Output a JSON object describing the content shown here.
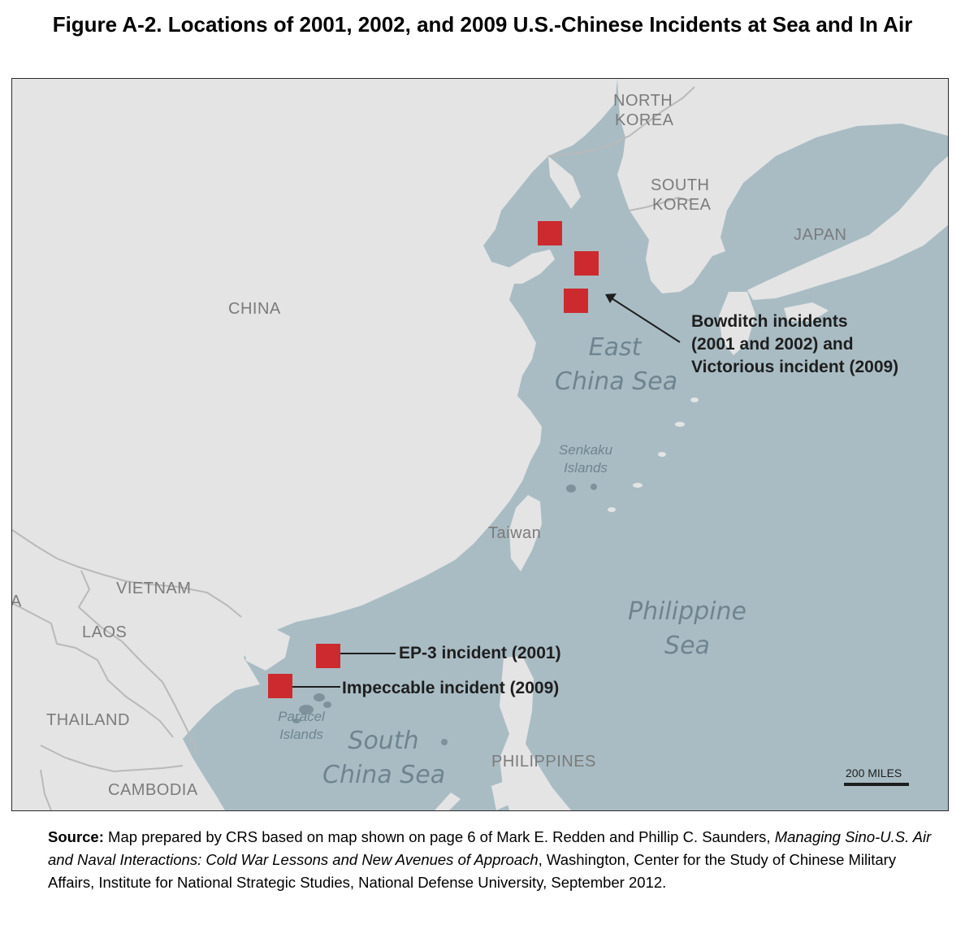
{
  "figure": {
    "title": "Figure A-2. Locations of 2001, 2002, and 2009 U.S.-Chinese Incidents at Sea and In Air"
  },
  "map": {
    "colors": {
      "land": "#e4e4e4",
      "sea": "#a9bcc4",
      "border": "#b9b9b9",
      "marker": "#cc2a2e"
    },
    "countries": {
      "china": "CHINA",
      "north_korea_1": "NORTH",
      "north_korea_2": "KOREA",
      "south_korea_1": "SOUTH",
      "south_korea_2": "KOREA",
      "japan": "JAPAN",
      "vietnam": "VIETNAM",
      "laos": "LAOS",
      "thailand": "THAILAND",
      "cambodia": "CAMBODIA",
      "taiwan": "Taiwan",
      "philippines": "PHILIPPINES",
      "edge_fragment": "A"
    },
    "seas": {
      "east_china_1": "East",
      "east_china_2": "China Sea",
      "philippine_1": "Philippine",
      "philippine_2": "Sea",
      "south_china_1": "South",
      "south_china_2": "China Sea"
    },
    "islands": {
      "senkaku_1": "Senkaku",
      "senkaku_2": "Islands",
      "paracel_1": "Paracel",
      "paracel_2": "Islands"
    },
    "callouts": {
      "bowditch_1": "Bowditch incidents",
      "bowditch_2": "(2001 and 2002) and",
      "bowditch_3": "Victorious incident (2009)",
      "ep3": "EP-3 incident (2001)",
      "impeccable": "Impeccable incident (2009)"
    },
    "scale": {
      "label": "200 MILES"
    }
  },
  "source": {
    "label": "Source:",
    "text_before": " Map prepared by CRS based on map shown on page 6 of Mark E. Redden and Phillip C. Saunders, ",
    "book_title": "Managing Sino-U.S. Air and Naval Interactions: Cold War Lessons and New Avenues of Approach",
    "text_after": ", Washington, Center for the Study of Chinese Military Affairs, Institute for National Strategic Studies, National Defense University, September 2012."
  }
}
